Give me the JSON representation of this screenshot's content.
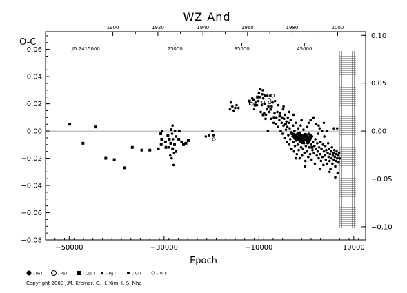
{
  "chart_data": {
    "type": "scatter",
    "title": "WZ And",
    "ylabel": "O-C",
    "xlabel": "Epoch",
    "xlim": [
      -55000,
      12500
    ],
    "ylim": [
      -0.08,
      0.073
    ],
    "x_ticks": [
      {
        "value": -50000,
        "label": "−50000"
      },
      {
        "value": -30000,
        "label": "−30000"
      },
      {
        "value": -10000,
        "label": "−10000"
      },
      {
        "value": 10000,
        "label": "10000"
      }
    ],
    "y_ticks": [
      {
        "value": 0.06,
        "label": "0.06"
      },
      {
        "value": 0.04,
        "label": "0.04"
      },
      {
        "value": 0.02,
        "label": "0.02"
      },
      {
        "value": 0.0,
        "label": "0.00"
      },
      {
        "value": -0.02,
        "label": "−0.02"
      },
      {
        "value": -0.04,
        "label": "−0.04"
      },
      {
        "value": -0.06,
        "label": "−0.06"
      },
      {
        "value": -0.08,
        "label": "−0.08"
      }
    ],
    "top_year_ticks": [
      {
        "value": -40800,
        "label": "1900"
      },
      {
        "value": -31300,
        "label": "1920"
      },
      {
        "value": -21800,
        "label": "1940"
      },
      {
        "value": -12400,
        "label": "1960"
      },
      {
        "value": -3000,
        "label": "1980"
      },
      {
        "value": 6600,
        "label": "2000"
      }
    ],
    "jd_labels": [
      {
        "value": -46500,
        "label": "JD 2415000"
      },
      {
        "value": -27700,
        "label": "25000"
      },
      {
        "value": -13600,
        "label": "35000"
      },
      {
        "value": -400,
        "label": "45000"
      }
    ],
    "right_axis": {
      "scale_factor": 1.422,
      "ticks": [
        {
          "value": 0.1,
          "label": "0.10"
        },
        {
          "value": 0.05,
          "label": "0.05"
        },
        {
          "value": 0.0,
          "label": "0.00"
        },
        {
          "value": -0.05,
          "label": "−0.05"
        },
        {
          "value": -0.1,
          "label": "−0.10"
        }
      ]
    },
    "hatched_region": {
      "x_from": 7000,
      "x_to": 12500
    },
    "legend": [
      {
        "symbol": "filled-circle",
        "label": ": Pe I"
      },
      {
        "symbol": "open-circle",
        "label": ": Pe II"
      },
      {
        "symbol": "filled-square",
        "label": ": Ccd I"
      },
      {
        "symbol": "small-square",
        "label": ": Pg I"
      },
      {
        "symbol": "dot",
        "label": ": Vi I"
      },
      {
        "symbol": "open-dot",
        "label": ": Vi II"
      }
    ],
    "series": [
      {
        "name": "Pg I",
        "marker": "square",
        "points": [
          [
            -49900,
            0.005
          ],
          [
            -47100,
            -0.009
          ],
          [
            -44500,
            0.003
          ],
          [
            -42300,
            -0.02
          ],
          [
            -40500,
            -0.021
          ],
          [
            -38400,
            -0.027
          ],
          [
            -36700,
            -0.012
          ],
          [
            -34700,
            -0.014
          ],
          [
            -33000,
            -0.014
          ],
          [
            -31200,
            -0.013
          ],
          [
            -30700,
            -0.002
          ],
          [
            -30600,
            -0.01
          ],
          [
            -30500,
            -0.006
          ],
          [
            -30400,
            0.0
          ],
          [
            -29700,
            -0.008
          ],
          [
            -29600,
            -0.012
          ],
          [
            -29200,
            -0.003
          ],
          [
            -28900,
            -0.006
          ],
          [
            -28600,
            -0.009
          ],
          [
            -28500,
            0.001
          ],
          [
            -28200,
            -0.013
          ],
          [
            -27800,
            -0.01
          ],
          [
            -27500,
            -0.015
          ],
          [
            -26900,
            -0.006
          ],
          [
            -26800,
            0.0
          ],
          [
            -26300,
            -0.008
          ],
          [
            -25900,
            -0.01
          ],
          [
            -25400,
            -0.009
          ],
          [
            -24900,
            -0.007
          ],
          [
            -12000,
            0.022
          ],
          [
            -11800,
            0.02
          ],
          [
            -11200,
            0.023
          ],
          [
            -10800,
            0.019
          ],
          [
            -10300,
            0.025
          ],
          [
            -9100,
            0.012
          ],
          [
            -7500,
            0.016
          ],
          [
            -6800,
            0.01
          ],
          [
            -5600,
            0.011
          ],
          [
            -4400,
            0.005
          ],
          [
            -3000,
            -0.002
          ],
          [
            -500,
            -0.006
          ],
          [
            1200,
            -0.012
          ]
        ]
      },
      {
        "name": "Vi I",
        "marker": "dot",
        "points": [
          [
            -29000,
            -0.012
          ],
          [
            -28700,
            -0.018
          ],
          [
            -28400,
            -0.02
          ],
          [
            -28300,
            -0.002
          ],
          [
            -28200,
            0.004
          ],
          [
            -28100,
            -0.006
          ],
          [
            -28000,
            -0.025
          ],
          [
            -27900,
            -0.016
          ],
          [
            -27700,
            0.0
          ],
          [
            -27500,
            -0.004
          ],
          [
            -21200,
            -0.004
          ],
          [
            -20500,
            -0.003
          ],
          [
            -19800,
            0.0
          ],
          [
            -19600,
            -0.003
          ],
          [
            -16100,
            0.016
          ],
          [
            -15900,
            0.021
          ],
          [
            -15600,
            0.018
          ],
          [
            -15300,
            0.015
          ],
          [
            -15000,
            0.017
          ],
          [
            -14700,
            0.019
          ],
          [
            -14300,
            0.017
          ],
          [
            -11400,
            0.024
          ],
          [
            -11000,
            0.016
          ],
          [
            -10700,
            0.021
          ],
          [
            -10400,
            0.019
          ],
          [
            -10100,
            0.022
          ],
          [
            -10000,
            0.028
          ],
          [
            -9800,
            0.025
          ],
          [
            -9700,
            0.031
          ],
          [
            -9600,
            0.014
          ],
          [
            -9400,
            0.019
          ],
          [
            -9300,
            0.027
          ],
          [
            -9200,
            0.03
          ],
          [
            -9100,
            0.024
          ],
          [
            -8900,
            0.013
          ],
          [
            -8800,
            0.026
          ],
          [
            -8700,
            0.02
          ],
          [
            -8600,
            0.009
          ],
          [
            -8500,
            0.012
          ],
          [
            -8300,
            0.016
          ],
          [
            -8200,
            0.026
          ],
          [
            -8100,
            0.0
          ],
          [
            -8000,
            0.018
          ],
          [
            -7900,
            0.022
          ],
          [
            -7800,
            0.014
          ],
          [
            -7600,
            0.026
          ],
          [
            -7400,
            0.009
          ],
          [
            -7300,
            0.018
          ],
          [
            -7100,
            0.021
          ],
          [
            -6900,
            0.006
          ],
          [
            -6700,
            0.013
          ],
          [
            -6600,
            0.022
          ],
          [
            -6400,
            0.005
          ],
          [
            -6300,
            0.01
          ],
          [
            -6100,
            0.014
          ],
          [
            -6000,
            0.003
          ],
          [
            -5900,
            0.019
          ],
          [
            -5700,
            0.008
          ],
          [
            -5500,
            0.013
          ],
          [
            -5400,
            0.0
          ],
          [
            -5200,
            0.006
          ],
          [
            -5100,
            0.01
          ],
          [
            -5000,
            -0.002
          ],
          [
            -4900,
            0.016
          ],
          [
            -4800,
            0.004
          ],
          [
            -4700,
            0.009
          ],
          [
            -4600,
            -0.005
          ],
          [
            -4500,
            0.012
          ],
          [
            -4300,
            0.001
          ],
          [
            -4200,
            0.007
          ],
          [
            -4100,
            -0.008
          ],
          [
            -4000,
            0.003
          ],
          [
            -3900,
            0.01
          ],
          [
            -3800,
            -0.003
          ],
          [
            -3700,
            0.006
          ],
          [
            -3600,
            -0.01
          ],
          [
            -3500,
            0.002
          ],
          [
            -3400,
            -0.006
          ],
          [
            -3300,
            0.008
          ],
          [
            -3200,
            -0.001
          ],
          [
            -3100,
            -0.013
          ],
          [
            -2900,
            -0.004
          ],
          [
            -2800,
            0.004
          ],
          [
            -2700,
            -0.008
          ],
          [
            -2600,
            -0.015
          ],
          [
            -2500,
            0.0
          ],
          [
            -2400,
            -0.011
          ],
          [
            -2300,
            -0.003
          ],
          [
            -2200,
            0.006
          ],
          [
            -2100,
            -0.007
          ],
          [
            -2000,
            -0.017
          ],
          [
            -1900,
            -0.002
          ],
          [
            -1800,
            -0.01
          ],
          [
            -1700,
            0.002
          ],
          [
            -1600,
            -0.014
          ],
          [
            -1500,
            -0.005
          ],
          [
            -1400,
            -0.02
          ],
          [
            -1300,
            -0.008
          ],
          [
            -1200,
            0.004
          ],
          [
            -1100,
            -0.012
          ],
          [
            -1000,
            -0.003
          ],
          [
            -900,
            -0.018
          ],
          [
            -800,
            -0.006
          ],
          [
            -700,
            -0.013
          ],
          [
            -600,
            0.001
          ],
          [
            -500,
            -0.009
          ],
          [
            -400,
            -0.016
          ],
          [
            -300,
            -0.004
          ],
          [
            -200,
            -0.022
          ],
          [
            -100,
            -0.011
          ],
          [
            0,
            -0.006
          ],
          [
            100,
            -0.015
          ],
          [
            200,
            0.003
          ],
          [
            300,
            -0.009
          ],
          [
            400,
            -0.019
          ],
          [
            500,
            -0.002
          ],
          [
            600,
            -0.012
          ],
          [
            700,
            -0.007
          ],
          [
            800,
            -0.017
          ],
          [
            900,
            0.008
          ],
          [
            1000,
            -0.01
          ],
          [
            1100,
            -0.021
          ],
          [
            1200,
            -0.004
          ],
          [
            1300,
            -0.014
          ],
          [
            1400,
            -0.008
          ],
          [
            1500,
            0.01
          ],
          [
            1600,
            -0.016
          ],
          [
            1700,
            -0.011
          ],
          [
            1800,
            -0.024
          ],
          [
            1900,
            -0.006
          ],
          [
            2000,
            -0.013
          ],
          [
            2100,
            0.005
          ],
          [
            2200,
            -0.018
          ],
          [
            2300,
            -0.009
          ],
          [
            2400,
            -0.015
          ],
          [
            2500,
            -0.002
          ],
          [
            2600,
            -0.02
          ],
          [
            2700,
            -0.012
          ],
          [
            2800,
            0.002
          ],
          [
            2900,
            -0.017
          ],
          [
            3000,
            -0.008
          ],
          [
            3100,
            -0.022
          ],
          [
            3200,
            -0.013
          ],
          [
            3300,
            0.0
          ],
          [
            3400,
            -0.019
          ],
          [
            3500,
            -0.01
          ],
          [
            3600,
            -0.025
          ],
          [
            3700,
            -0.015
          ],
          [
            3800,
            -0.004
          ],
          [
            3900,
            -0.018
          ],
          [
            4000,
            -0.011
          ],
          [
            4100,
            -0.021
          ],
          [
            4200,
            -0.014
          ],
          [
            4300,
            0.0
          ],
          [
            4400,
            -0.024
          ],
          [
            4500,
            -0.016
          ],
          [
            4600,
            -0.009
          ],
          [
            4700,
            -0.019
          ],
          [
            4800,
            -0.013
          ],
          [
            4900,
            -0.022
          ],
          [
            5000,
            -0.017
          ],
          [
            5100,
            -0.028
          ],
          [
            5200,
            -0.015
          ],
          [
            5300,
            -0.02
          ],
          [
            5400,
            -0.012
          ],
          [
            5500,
            -0.024
          ],
          [
            5600,
            -0.018
          ],
          [
            5700,
            -0.016
          ],
          [
            5800,
            -0.021
          ],
          [
            5900,
            -0.014
          ],
          [
            6000,
            -0.019
          ],
          [
            6100,
            -0.026
          ],
          [
            6200,
            -0.017
          ],
          [
            6300,
            -0.022
          ],
          [
            6400,
            -0.015
          ],
          [
            6500,
            -0.02
          ],
          [
            6600,
            -0.031
          ],
          [
            6700,
            -0.018
          ],
          [
            6800,
            -0.023
          ],
          [
            6900,
            -0.016
          ],
          [
            7000,
            -0.02
          ],
          [
            -4800,
            0.018
          ],
          [
            -3600,
            0.014
          ],
          [
            -2700,
            0.012
          ],
          [
            -1000,
            0.008
          ],
          [
            500,
            0.006
          ],
          [
            2600,
            0.004
          ],
          [
            3700,
            0.006
          ],
          [
            5800,
            0.002
          ],
          [
            6500,
            0.002
          ],
          [
            -2200,
            -0.02
          ],
          [
            -300,
            -0.026
          ],
          [
            2900,
            -0.028
          ],
          [
            4900,
            -0.03
          ],
          [
            6100,
            -0.034
          ]
        ]
      },
      {
        "name": "Pe I",
        "marker": "filled-circle",
        "points": [
          [
            -2600,
            -0.003
          ],
          [
            -2300,
            -0.005
          ],
          [
            -1900,
            -0.004
          ],
          [
            -1600,
            -0.006
          ],
          [
            -1300,
            -0.005
          ],
          [
            -1000,
            -0.007
          ],
          [
            -700,
            -0.004
          ],
          [
            -400,
            -0.006
          ],
          [
            -200,
            -0.003
          ],
          [
            0,
            -0.005
          ],
          [
            300,
            -0.008
          ],
          [
            600,
            -0.006
          ],
          [
            -1500,
            -0.002
          ],
          [
            -800,
            -0.008
          ],
          [
            900,
            -0.004
          ]
        ]
      },
      {
        "name": "Pe II",
        "marker": "open-circle",
        "points": [
          [
            -19500,
            -0.006
          ],
          [
            -11500,
            0.02
          ],
          [
            -9100,
            0.021
          ],
          [
            -7800,
            0.023
          ],
          [
            -7700,
            0.021
          ],
          [
            -7100,
            0.026
          ]
        ]
      }
    ]
  },
  "footer": {
    "copyright": "Copyright 2000 J.M. Kreiner, C.-H. Kim, I.-S. Nha"
  }
}
